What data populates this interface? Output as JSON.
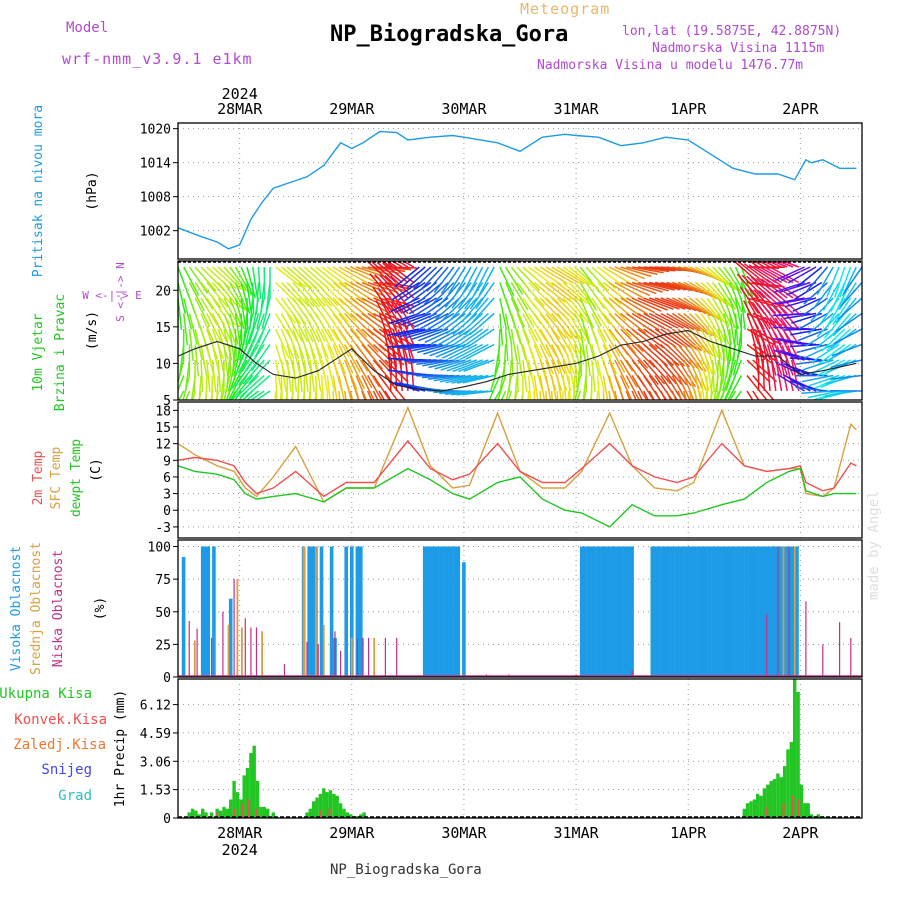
{
  "header": {
    "model_label": "Model",
    "model_version": "wrf-nmm_v3.9.1 e1km",
    "meteogram_label": "Meteogram",
    "station_title": "NP_Biogradska_Gora",
    "lonlat": "lon,lat (19.5875E, 42.8875N)",
    "altitude": "Nadmorska Visina 1115m",
    "model_altitude": "Nadmorska Visina u modelu 1476.77m"
  },
  "footer": {
    "station": "NP_Biogradska_Gora"
  },
  "watermark": "made by Angel",
  "colors": {
    "pressure": "#1e9be6",
    "temp_2m": "#f05050",
    "sfc_temp": "#d8a040",
    "dewpoint": "#22c622",
    "high_cloud": "#1e9be6",
    "mid_cloud": "#d8a040",
    "low_cloud": "#c0308a",
    "precip_total": "#22c622",
    "precip_conv": "#f05050",
    "precip_frozen": "#ee7733",
    "snow": "#4444ee",
    "hail": "#30c0c0",
    "grid": "#999999"
  },
  "chart_data": [
    {
      "type": "line",
      "panel": "pressure",
      "ylabel_1": "Pritisak na nivou mora",
      "ylabel_2": "(hPa)",
      "x_unit": "days from 2024-03-28 00UTC",
      "ylim": [
        997,
        1021
      ],
      "yticks": [
        "1002",
        "1008",
        "1014",
        "1020"
      ],
      "series": [
        {
          "name": "Pritisak na nivou mora",
          "x": [
            -0.55,
            -0.35,
            -0.2,
            -0.1,
            0,
            0.1,
            0.2,
            0.3,
            0.45,
            0.6,
            0.75,
            0.9,
            1.0,
            1.1,
            1.25,
            1.4,
            1.5,
            1.7,
            1.9,
            2.0,
            2.3,
            2.5,
            2.7,
            2.9,
            3.0,
            3.2,
            3.4,
            3.6,
            3.8,
            4.0,
            4.2,
            4.4,
            4.6,
            4.8,
            4.95,
            5.05,
            5.1,
            5.2,
            5.35,
            5.5
          ],
          "y": [
            1002.5,
            1001,
            1000,
            998.8,
            999.5,
            1004,
            1007,
            1009.5,
            1010.5,
            1011.5,
            1013.5,
            1017.5,
            1016.5,
            1017.5,
            1019.5,
            1019.3,
            1018,
            1018.5,
            1018.8,
            1018.5,
            1017.5,
            1016,
            1018.5,
            1019,
            1018.8,
            1018.5,
            1017,
            1017.5,
            1018.5,
            1018,
            1015.5,
            1013,
            1012,
            1012,
            1011,
            1014.5,
            1014,
            1014.5,
            1013,
            1013
          ]
        }
      ]
    },
    {
      "type": "line",
      "panel": "wind",
      "ylabel_1": "10m Vjetar",
      "ylabel_2": "Brzina i Pravac",
      "ylabel_3": "(m/s)",
      "compass": "W <-|-> E",
      "compass_ns": "S <-|-> N",
      "ylim": [
        5,
        24
      ],
      "yticks": [
        "5",
        "10",
        "15",
        "20"
      ],
      "series": [
        {
          "name": "10m Vjetar Brzina",
          "x": [
            -0.55,
            -0.4,
            -0.2,
            0,
            0.15,
            0.3,
            0.5,
            0.7,
            0.9,
            1.0,
            1.2,
            1.4,
            1.6,
            1.8,
            2.0,
            2.2,
            2.4,
            2.6,
            2.8,
            3.0,
            3.2,
            3.4,
            3.6,
            3.8,
            4.0,
            4.2,
            4.4,
            4.6,
            4.8,
            5.0,
            5.2,
            5.35,
            5.5
          ],
          "y": [
            11,
            12,
            13,
            12,
            10,
            8.5,
            8,
            9,
            11,
            12,
            9,
            7,
            6.5,
            6.2,
            6.8,
            7.5,
            8.5,
            9,
            9.5,
            10,
            11,
            12.5,
            13,
            14,
            14.5,
            13,
            12,
            11,
            11,
            8.5,
            9,
            9.5,
            10
          ]
        }
      ],
      "direction_hue_note": "barb colour encodes wind direction"
    },
    {
      "type": "line",
      "panel": "temperature",
      "ylabel_1": "2m Temp",
      "ylabel_2": "SFC Temp",
      "ylabel_3": "dewpt Temp",
      "ylabel_4": "(C)",
      "ylim": [
        -5,
        19.5
      ],
      "yticks": [
        "-3",
        "0",
        "3",
        "6",
        "9",
        "12",
        "15",
        "18"
      ],
      "series": [
        {
          "name": "2m Temp",
          "x": [
            -0.55,
            -0.4,
            -0.2,
            -0.05,
            0.05,
            0.15,
            0.3,
            0.5,
            0.75,
            0.95,
            1.05,
            1.2,
            1.5,
            1.7,
            1.9,
            2.05,
            2.3,
            2.5,
            2.7,
            2.9,
            3.05,
            3.3,
            3.5,
            3.7,
            3.9,
            4.05,
            4.3,
            4.5,
            4.7,
            4.9,
            5.0,
            5.05,
            5.2,
            5.3,
            5.45,
            5.5
          ],
          "y": [
            9,
            9.5,
            9,
            8,
            5,
            3,
            4,
            7,
            2.5,
            5,
            5,
            5,
            12.5,
            7.5,
            5.5,
            6.5,
            12,
            7,
            5,
            5,
            7.5,
            12,
            8,
            6,
            5,
            6,
            12,
            8,
            7,
            7.5,
            8,
            5,
            3.5,
            4,
            8.5,
            8
          ]
        },
        {
          "name": "SFC Temp",
          "x": [
            -0.55,
            -0.4,
            -0.2,
            -0.05,
            0.05,
            0.15,
            0.3,
            0.5,
            0.75,
            0.95,
            1.05,
            1.2,
            1.5,
            1.7,
            1.9,
            2.05,
            2.3,
            2.5,
            2.7,
            2.9,
            3.05,
            3.3,
            3.5,
            3.7,
            3.9,
            4.05,
            4.3,
            4.5,
            4.7,
            4.9,
            5.0,
            5.05,
            5.2,
            5.3,
            5.45,
            5.5
          ],
          "y": [
            12,
            10,
            8,
            7,
            4,
            2.5,
            6,
            11.5,
            1.5,
            4,
            4,
            4,
            18.5,
            8,
            4,
            4.5,
            17.5,
            7,
            4,
            4,
            7,
            17.5,
            8,
            4,
            3.5,
            5,
            18,
            8,
            7,
            7.5,
            7.5,
            3,
            2.5,
            4,
            15.5,
            14.5
          ]
        },
        {
          "name": "dewpt Temp",
          "x": [
            -0.55,
            -0.4,
            -0.2,
            -0.05,
            0.05,
            0.15,
            0.3,
            0.5,
            0.75,
            0.95,
            1.05,
            1.2,
            1.5,
            1.7,
            1.9,
            2.05,
            2.3,
            2.5,
            2.7,
            2.9,
            3.05,
            3.3,
            3.5,
            3.7,
            3.9,
            4.05,
            4.3,
            4.5,
            4.7,
            4.9,
            5.0,
            5.05,
            5.2,
            5.3,
            5.45,
            5.5
          ],
          "y": [
            8,
            7,
            6.5,
            5.5,
            3,
            2,
            2.5,
            3,
            1.5,
            4,
            4,
            4,
            7.5,
            5.5,
            3,
            2,
            5,
            6,
            2,
            0,
            -0.5,
            -3,
            1,
            -1,
            -1,
            -0.5,
            1,
            2,
            5,
            7,
            7.5,
            3.5,
            2.5,
            3,
            3,
            3
          ]
        }
      ]
    },
    {
      "type": "bar",
      "panel": "clouds",
      "ylabel_1": "Visoka Oblacnost",
      "ylabel_2": "Srednja Oblacnost",
      "ylabel_3": "Niska Oblacnost",
      "ylabel_4": "(%)",
      "ylim": [
        0,
        105
      ],
      "yticks": [
        "0",
        "25",
        "50",
        "75",
        "100"
      ],
      "series": [
        {
          "name": "Visoka Oblacnost",
          "x": [
            -0.5,
            -0.33,
            -0.3,
            -0.28,
            -0.23,
            -0.08,
            0.57,
            0.62,
            0.65,
            0.68,
            0.73,
            0.82,
            0.85,
            0.95,
            1.0,
            1.05,
            1.08,
            1.65,
            1.68,
            1.71,
            1.74,
            1.77,
            1.8,
            1.83,
            1.86,
            1.89,
            1.92,
            1.95,
            2.0,
            3.05,
            3.08,
            3.11,
            3.14,
            3.17,
            3.2,
            3.23,
            3.26,
            3.29,
            3.32,
            3.35,
            3.38,
            3.41,
            3.44,
            3.47,
            3.5,
            3.68,
            3.71,
            3.74,
            3.77,
            3.8,
            3.83,
            3.86,
            3.89,
            3.92,
            3.95,
            3.98,
            4.01,
            4.04,
            4.07,
            4.1,
            4.13,
            4.16,
            4.19,
            4.22,
            4.25,
            4.28,
            4.31,
            4.34,
            4.37,
            4.4,
            4.43,
            4.46,
            4.49,
            4.52,
            4.55,
            4.58,
            4.61,
            4.64,
            4.67,
            4.7,
            4.73,
            4.76,
            4.79,
            4.82,
            4.85,
            4.88,
            4.91,
            4.94,
            4.97
          ],
          "y": [
            92,
            100,
            100,
            100,
            100,
            60,
            100,
            100,
            100,
            100,
            100,
            100,
            30,
            100,
            100,
            100,
            100,
            100,
            100,
            100,
            100,
            100,
            100,
            100,
            100,
            100,
            100,
            100,
            88,
            100,
            100,
            100,
            100,
            100,
            100,
            100,
            100,
            100,
            100,
            100,
            100,
            100,
            100,
            100,
            100,
            100,
            100,
            100,
            100,
            100,
            100,
            100,
            100,
            100,
            100,
            100,
            100,
            100,
            100,
            100,
            100,
            100,
            100,
            100,
            100,
            100,
            100,
            100,
            100,
            100,
            100,
            100,
            100,
            100,
            100,
            100,
            100,
            100,
            100,
            100,
            100,
            100,
            100,
            100,
            100,
            100,
            100,
            100,
            100
          ]
        },
        {
          "name": "Srednja Oblacnost",
          "x": [
            -0.4,
            -0.1,
            -0.02,
            0.02,
            0.2,
            0.57,
            0.58,
            0.68,
            0.75,
            1.0,
            1.2,
            4.85,
            4.95
          ],
          "y": [
            28,
            40,
            75,
            38,
            35,
            100,
            100,
            100,
            40,
            30,
            30,
            100,
            100
          ]
        },
        {
          "name": "Niska Oblacnost",
          "x": [
            -0.45,
            -0.38,
            -0.25,
            -0.15,
            -0.05,
            0.05,
            0.1,
            0.15,
            0.4,
            0.6,
            0.7,
            0.85,
            0.9,
            1.05,
            1.1,
            1.15,
            1.3,
            1.4,
            2.2,
            2.4,
            3.0,
            3.5,
            4.7,
            4.8,
            4.9,
            5.05,
            5.2,
            5.35,
            5.45
          ],
          "y": [
            43,
            37,
            30,
            50,
            75,
            45,
            38,
            38,
            10,
            27,
            25,
            35,
            20,
            30,
            30,
            30,
            30,
            30,
            2,
            2,
            2,
            5,
            48,
            100,
            100,
            58,
            25,
            42,
            30
          ]
        }
      ]
    },
    {
      "type": "bar",
      "panel": "precipitation",
      "ylabel_1": "1hr Precip (mm)",
      "legend": [
        "Ukupna Kisa",
        "Konvek.Kisa",
        "Zaledj.Kisa",
        "Snijeg",
        "Grad"
      ],
      "ylim": [
        0,
        7.5
      ],
      "yticks": [
        "0",
        "1.53",
        "3.06",
        "4.59",
        "6.12"
      ],
      "series": [
        {
          "name": "Ukupna Kisa",
          "x": [
            -0.45,
            -0.42,
            -0.39,
            -0.36,
            -0.33,
            -0.3,
            -0.25,
            -0.2,
            -0.17,
            -0.14,
            -0.11,
            -0.08,
            -0.05,
            -0.02,
            0.01,
            0.04,
            0.07,
            0.1,
            0.13,
            0.16,
            0.19,
            0.22,
            0.25,
            0.3,
            0.6,
            0.63,
            0.66,
            0.69,
            0.72,
            0.75,
            0.78,
            0.81,
            0.84,
            0.87,
            0.9,
            0.93,
            0.96,
            0.99,
            1.02,
            1.05,
            1.08,
            1.11,
            4.5,
            4.53,
            4.56,
            4.59,
            4.62,
            4.65,
            4.68,
            4.71,
            4.74,
            4.77,
            4.8,
            4.83,
            4.86,
            4.89,
            4.92,
            4.95,
            4.98,
            5.01,
            5.04,
            5.07,
            5.1,
            5.13,
            5.16,
            5.2,
            5.3
          ],
          "y": [
            0.3,
            0.5,
            0.4,
            0.2,
            0.5,
            0.3,
            0.3,
            0.5,
            0.4,
            0.6,
            0.5,
            1.0,
            2.0,
            1.4,
            1.0,
            2.3,
            2.7,
            3.5,
            3.9,
            2.0,
            0.6,
            0.6,
            0.5,
            0.3,
            0.3,
            0.5,
            0.9,
            1.1,
            1.3,
            1.6,
            1.4,
            1.5,
            1.3,
            1.2,
            0.8,
            0.5,
            0.3,
            0.2,
            0.1,
            0.1,
            0.2,
            0.3,
            0.5,
            0.8,
            0.9,
            1.0,
            1.3,
            1.2,
            1.6,
            1.8,
            2.0,
            2.1,
            2.4,
            2.2,
            2.8,
            3.7,
            4.1,
            7.5,
            6.8,
            1.8,
            0.8,
            0.8,
            0.2,
            0.1,
            0.2,
            0.1,
            0.1
          ]
        },
        {
          "name": "Konvek.Kisa",
          "x": [
            -0.2,
            -0.05,
            0.02,
            0.08,
            0.15,
            0.72,
            0.8,
            4.7,
            4.85,
            4.93,
            4.98
          ],
          "y": [
            0.3,
            0.5,
            0.8,
            1.0,
            0.5,
            0.4,
            0.5,
            0.6,
            0.8,
            1.2,
            1.0
          ]
        }
      ]
    }
  ],
  "axes": {
    "top_year": "2024",
    "bottom_year": "2024",
    "x_unit": "days from 2024-03-28 00UTC",
    "days": [
      {
        "label": "28MAR",
        "x": 0
      },
      {
        "label": "29MAR",
        "x": 1
      },
      {
        "label": "30MAR",
        "x": 2
      },
      {
        "label": "31MAR",
        "x": 3
      },
      {
        "label": "1APR",
        "x": 4
      },
      {
        "label": "2APR",
        "x": 5
      }
    ],
    "xlim": [
      -0.55,
      5.55
    ]
  }
}
